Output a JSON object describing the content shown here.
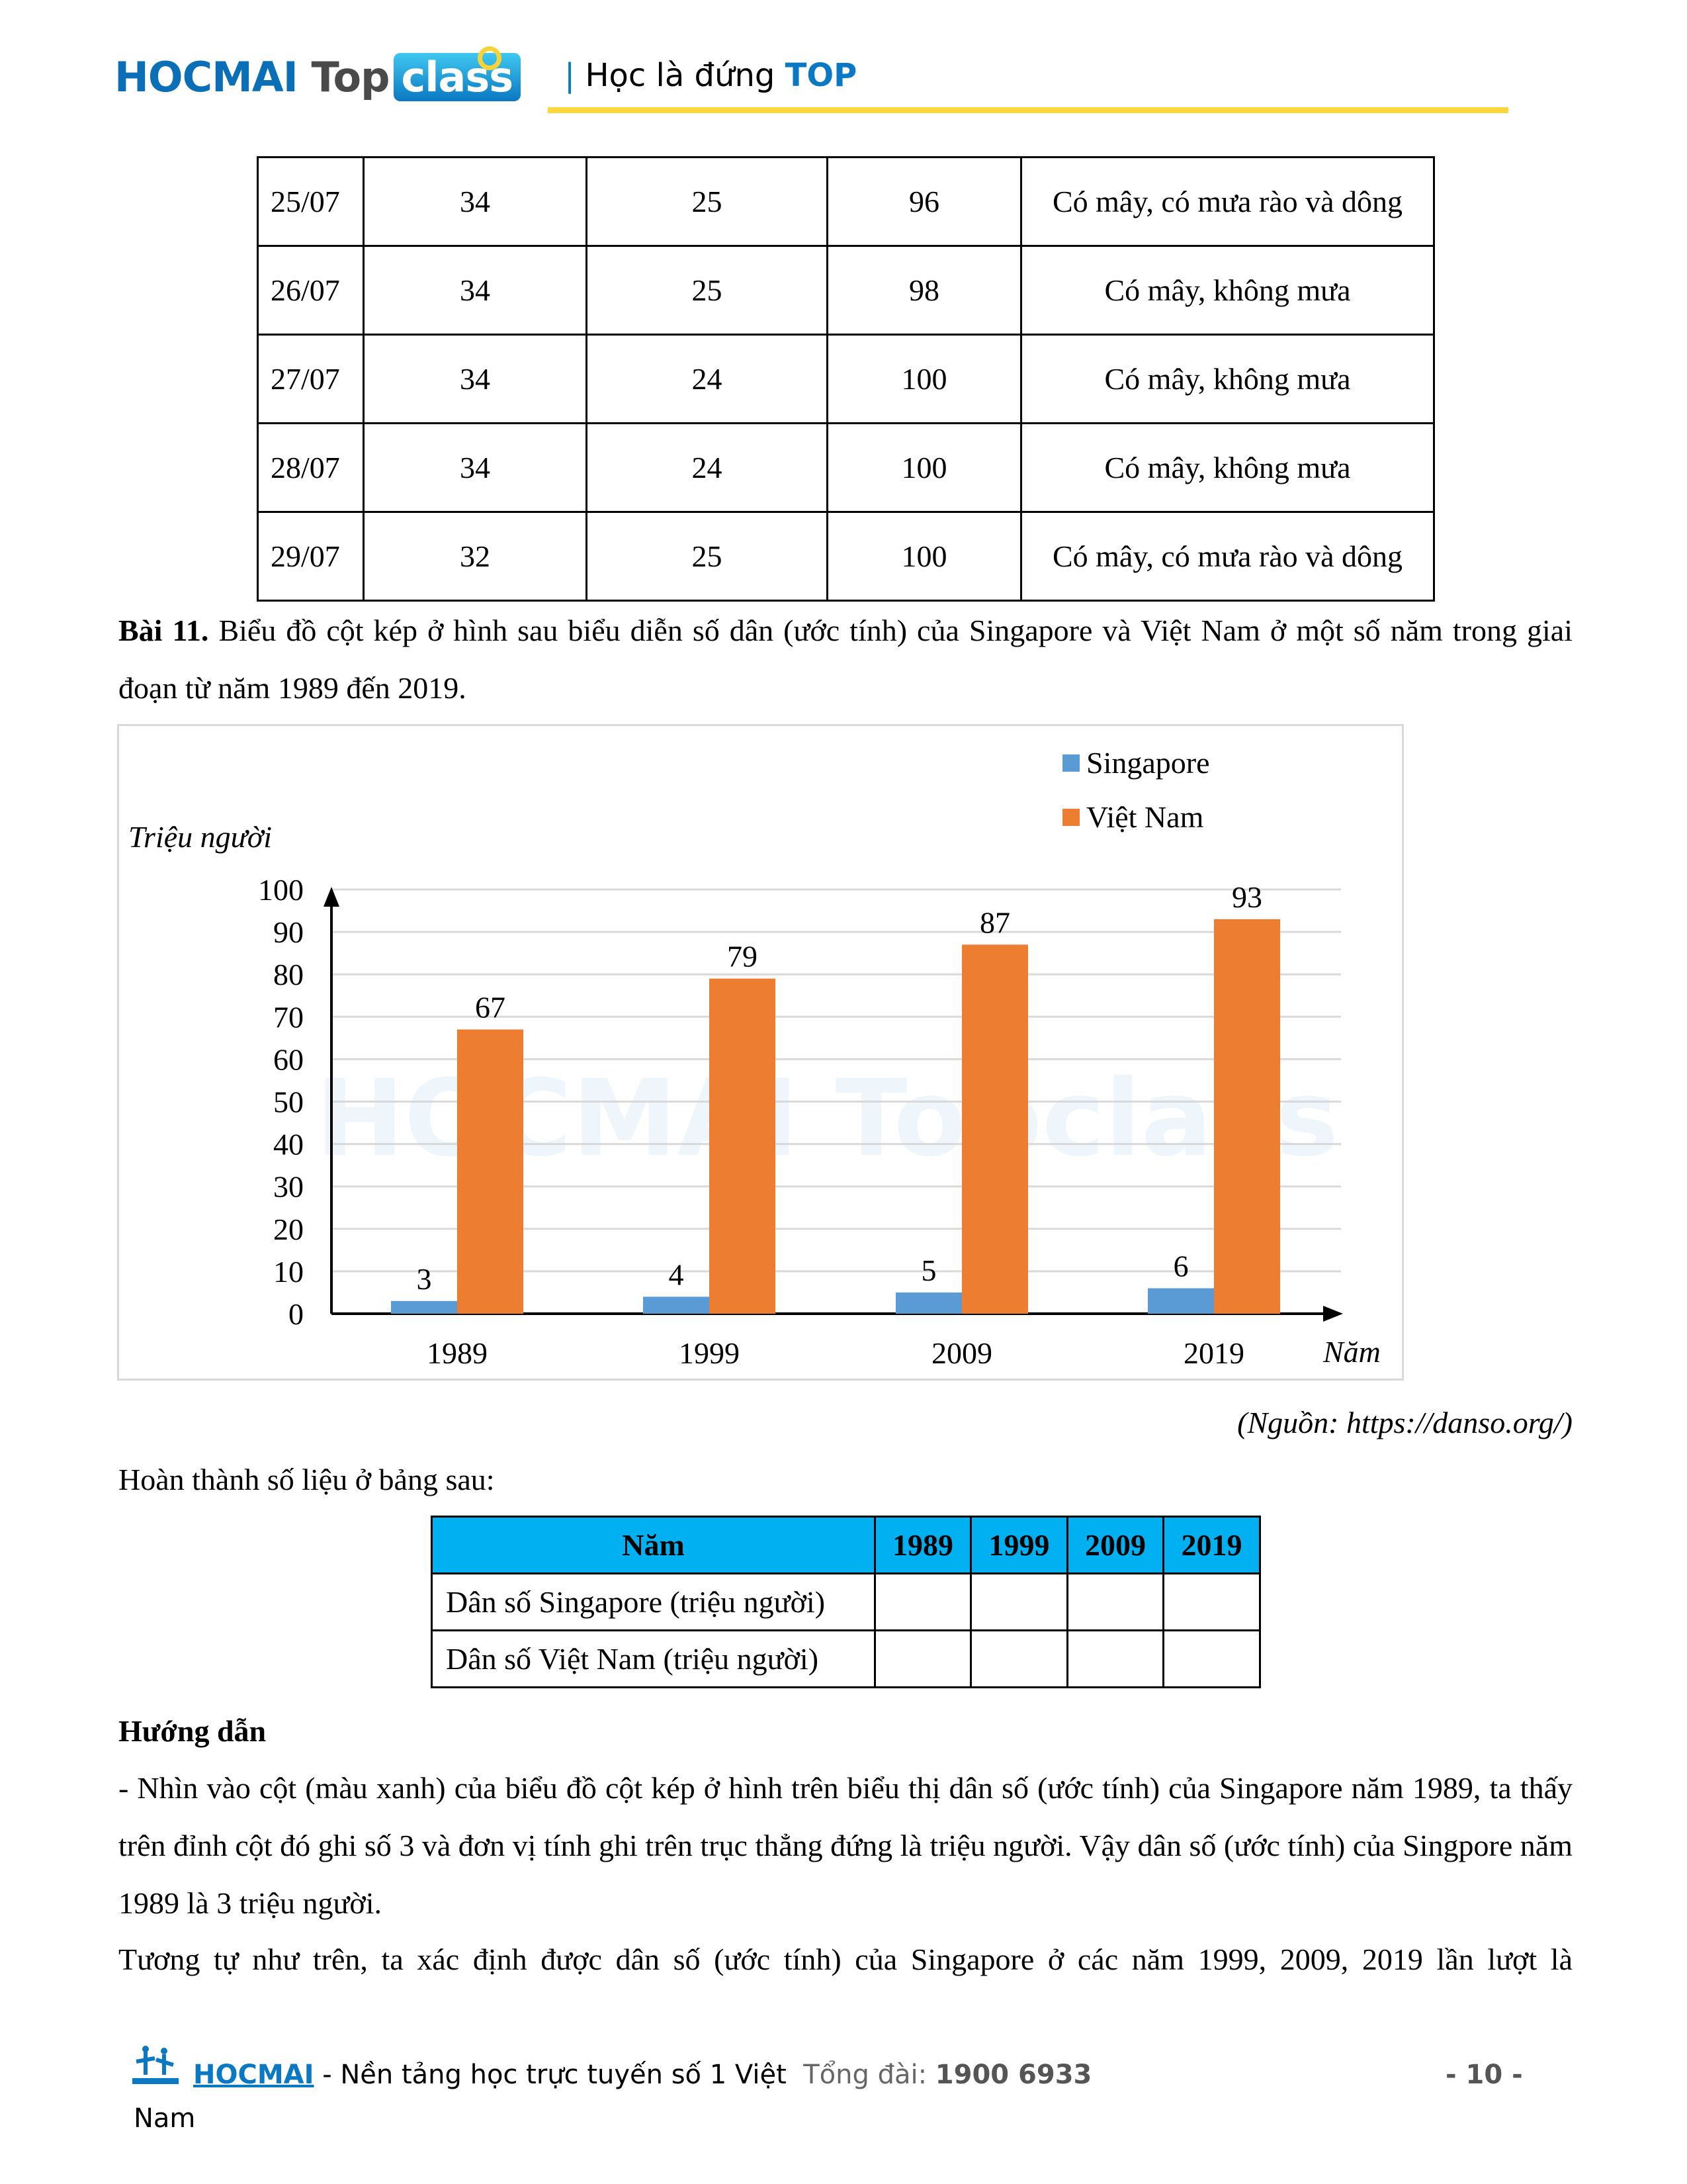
{
  "header": {
    "logo": {
      "hocmai": "HOCMAI",
      "top": "Top",
      "class": "class"
    },
    "tagline_bar": "|",
    "tagline": "Học là đứng ",
    "tagline_top": "TOP"
  },
  "weather_table": {
    "rows": [
      [
        "25/07",
        "34",
        "25",
        "96",
        "Có mây, có mưa rào và dông"
      ],
      [
        "26/07",
        "34",
        "25",
        "98",
        "Có mây, không mưa"
      ],
      [
        "27/07",
        "34",
        "24",
        "100",
        "Có mây, không mưa"
      ],
      [
        "28/07",
        "34",
        "24",
        "100",
        "Có mây, không mưa"
      ],
      [
        "29/07",
        "32",
        "25",
        "100",
        "Có mây, có mưa rào và dông"
      ]
    ]
  },
  "exercise": {
    "label": "Bài 11.",
    "text": " Biểu đồ cột kép ở hình sau biểu diễn số dân (ước tính) của Singapore và Việt Nam ở một số năm trong giai đoạn từ năm 1989 đến 2019."
  },
  "chart_data": {
    "type": "bar",
    "categories": [
      "1989",
      "1999",
      "2009",
      "2019"
    ],
    "series": [
      {
        "name": "Singapore",
        "values": [
          3,
          4,
          5,
          6
        ],
        "color": "#5b9bd5"
      },
      {
        "name": "Việt Nam",
        "values": [
          67,
          79,
          87,
          93
        ],
        "color": "#ed7d31"
      }
    ],
    "ylabel": "Triệu người",
    "xlabel": "Năm",
    "ylim": [
      0,
      100
    ],
    "yticks": [
      "0",
      "10",
      "20",
      "30",
      "40",
      "50",
      "60",
      "70",
      "80",
      "90",
      "100"
    ],
    "grid": true,
    "legend": "top-right",
    "watermark": "HOCMAI Topclass"
  },
  "source": "(Nguồn: https://danso.org/)",
  "instruction": "Hoàn thành số liệu ở bảng sau:",
  "fill_table": {
    "header": [
      "Năm",
      "1989",
      "1999",
      "2009",
      "2019"
    ],
    "rows": [
      [
        "Dân số Singapore (triệu người)",
        "",
        "",
        "",
        ""
      ],
      [
        "Dân số Việt Nam (triệu người)",
        "",
        "",
        "",
        ""
      ]
    ],
    "header_color": "#00b0f0"
  },
  "guide": {
    "title": "Hướng dẫn",
    "p1": "- Nhìn vào cột (màu xanh) của biểu đồ cột kép ở hình trên biểu thị dân số (ước tính) của Singapore năm 1989, ta thấy trên đỉnh cột đó ghi số 3 và đơn vị tính ghi trên trục thẳng đứng là triệu người. Vậy dân số (ước tính) của Singpore năm 1989 là  3  triệu người.",
    "p2": "Tương tự như trên, ta xác định được dân số (ước tính) của Singapore ở các năm 1999, 2009, 2019 lần lượt là"
  },
  "footer": {
    "brand": "HOCMAI",
    "tagline": " - Nền tảng học trực tuyến số 1 Việt",
    "tagline_cont": "Nam",
    "hotline_label": "Tổng đài: ",
    "hotline": "1900 6933",
    "page": "- 10 -"
  }
}
